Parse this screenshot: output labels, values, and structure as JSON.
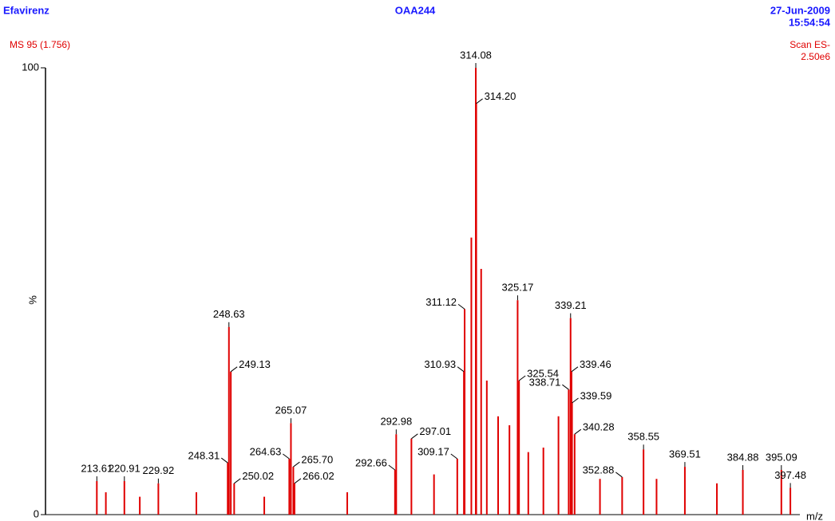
{
  "chart_data": {
    "type": "stem",
    "title": "Efavirenz",
    "sample": "OAA244",
    "date": "27-Jun-2009",
    "time": "15:54:54",
    "scan_info": "MS 95 (1.756)",
    "scan_mode": "Scan ES-",
    "intensity": "2.50e6",
    "ylabel": "%",
    "xlabel": "m/z",
    "xlim": [
      200,
      400
    ],
    "ylim": [
      0,
      100
    ],
    "yticks": [
      0,
      100
    ],
    "color": "#e00000",
    "x": [
      213.61,
      216,
      220.91,
      225,
      229.92,
      240,
      248.31,
      248.63,
      249.13,
      250.02,
      258,
      264.63,
      265.07,
      265.7,
      266.02,
      280,
      292.66,
      292.98,
      297.01,
      303,
      309.17,
      310.93,
      311.12,
      312.9,
      314.08,
      314.2,
      315.5,
      317,
      320,
      323,
      325.17,
      325.54,
      328,
      332,
      336,
      338.71,
      339.21,
      339.46,
      339.59,
      340.28,
      347,
      352.88,
      358.55,
      362,
      369.51,
      378,
      384.88,
      395.09,
      397.48
    ],
    "values": [
      7.5,
      5,
      7.5,
      4,
      7,
      5,
      11.6,
      42,
      32,
      7,
      4,
      12.5,
      20.5,
      10.7,
      7,
      5,
      10,
      18,
      17,
      9,
      12.5,
      32,
      46,
      62,
      100,
      92,
      55,
      30,
      22,
      20,
      48,
      30,
      14,
      15,
      22,
      28,
      44,
      32,
      25,
      18,
      8,
      8.4,
      14.6,
      8,
      10.7,
      7,
      10,
      10,
      6
    ],
    "x_labels": [
      "213.61",
      null,
      "220.91",
      null,
      "229.92",
      null,
      "248.31",
      "248.63",
      "249.13",
      "250.02",
      null,
      "264.63",
      "265.07",
      "265.70",
      "266.02",
      null,
      "292.66",
      "292.98",
      "297.01",
      null,
      "309.17",
      "310.93",
      "311.12",
      null,
      "314.08",
      "314.20",
      null,
      null,
      null,
      null,
      "325.17",
      "325.54",
      null,
      null,
      null,
      "338.71",
      "339.21",
      "339.46",
      "339.59",
      "340.28",
      null,
      "352.88",
      "358.55",
      null,
      "369.51",
      null,
      "384.88",
      "395.09",
      "397.48"
    ]
  }
}
